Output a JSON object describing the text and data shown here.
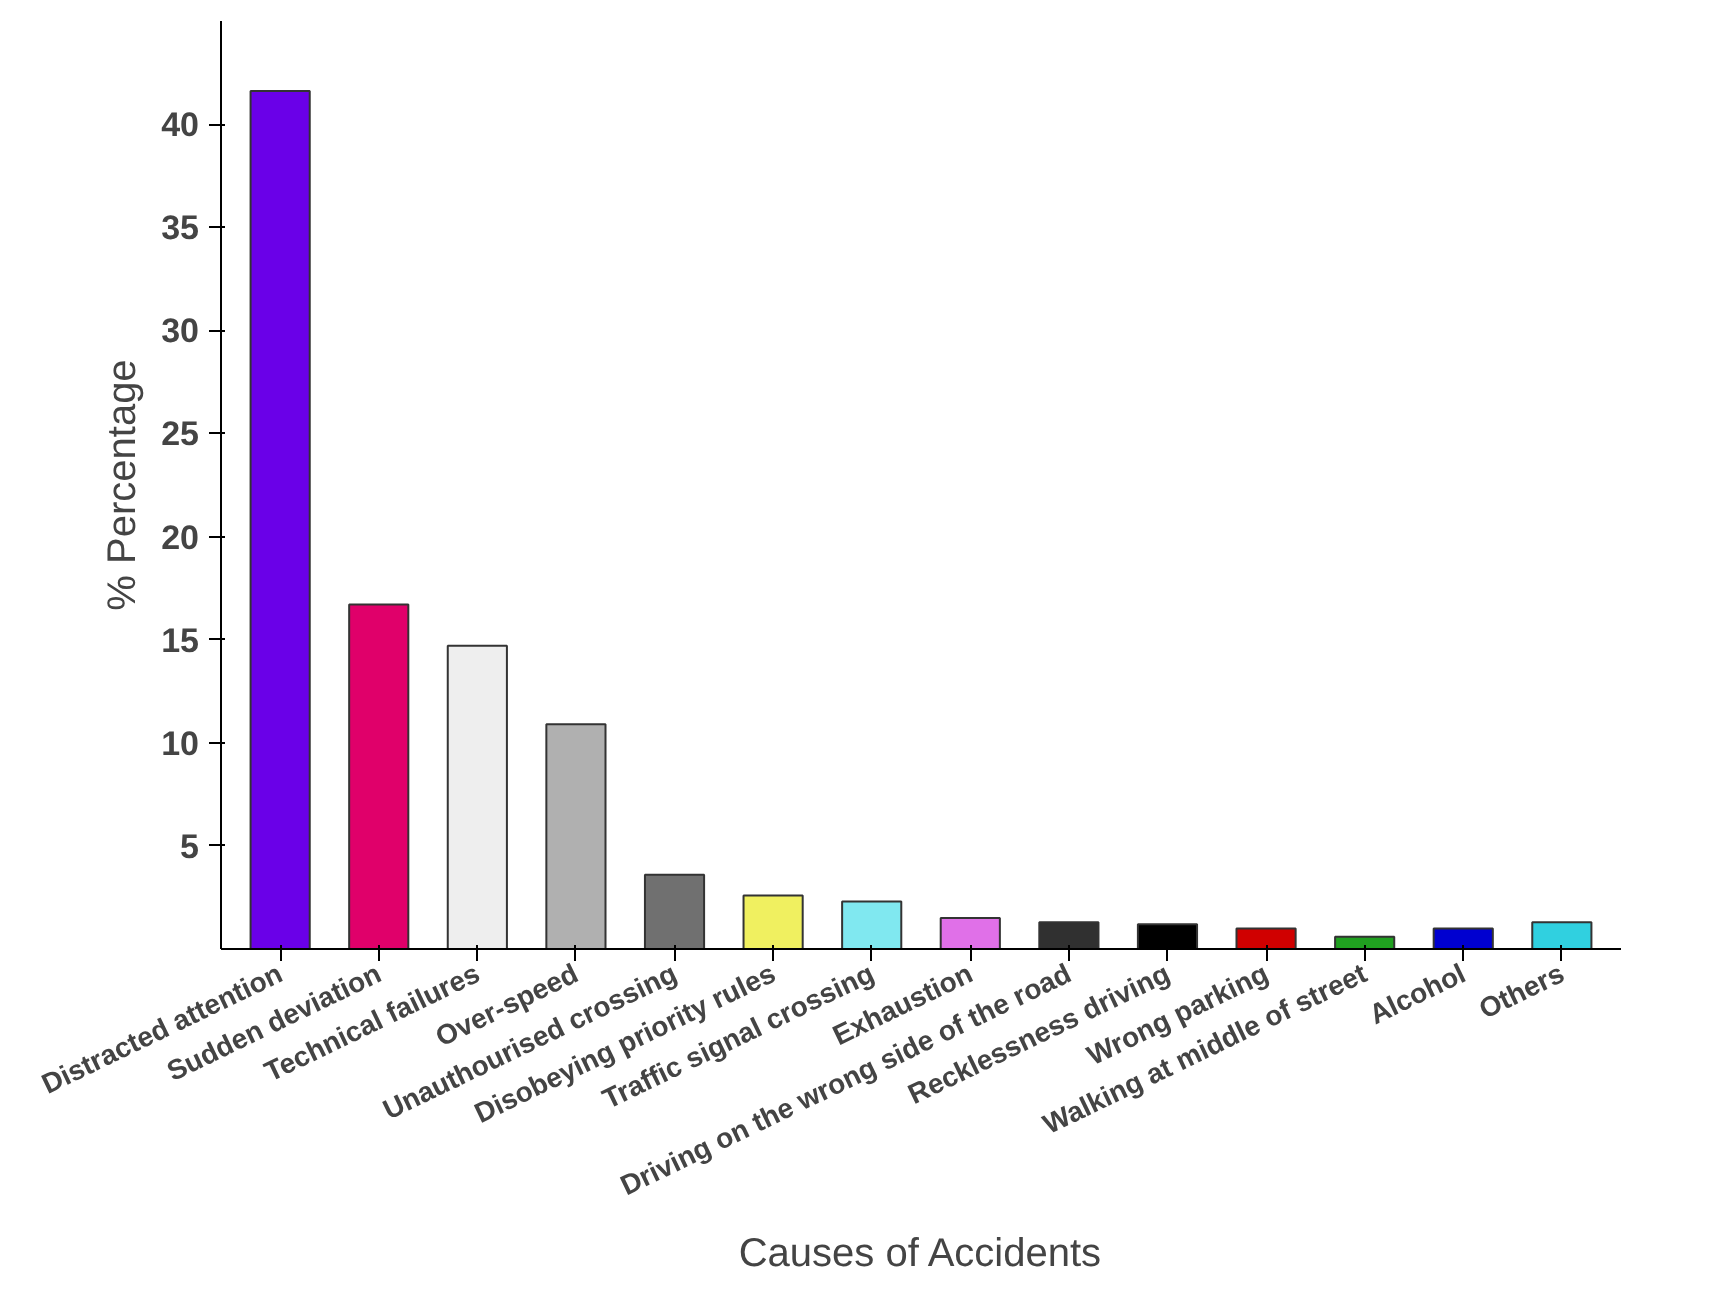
{
  "chart_data": {
    "type": "bar",
    "xlabel": "Causes of Accidents",
    "ylabel": "% Percentage",
    "categories": [
      "Distracted attention",
      "Sudden deviation",
      "Technical failures",
      "Over-speed",
      "Unauthourised crossing",
      "Disobeying priority rules",
      "Traffic signal crossing",
      "Exhaustion",
      "Driving on the wrong side of the road",
      "Recklessness driving",
      "Wrong parking",
      "Walking at middle of street",
      "Alcohol",
      "Others"
    ],
    "values": [
      41.6,
      16.7,
      14.7,
      10.9,
      3.6,
      2.6,
      2.3,
      1.5,
      1.3,
      1.2,
      1.0,
      0.6,
      1.0,
      1.3
    ],
    "colors": [
      "#6a00e8",
      "#e0006a",
      "#eeeeee",
      "#b0b0b0",
      "#707070",
      "#f0f060",
      "#80e8f0",
      "#e070e8",
      "#303030",
      "#000000",
      "#d00000",
      "#20a020",
      "#0000d0",
      "#30d0e0"
    ],
    "ylim": [
      0,
      45
    ],
    "yticks": [
      5,
      10,
      15,
      20,
      25,
      30,
      35,
      40
    ],
    "grid": false
  }
}
